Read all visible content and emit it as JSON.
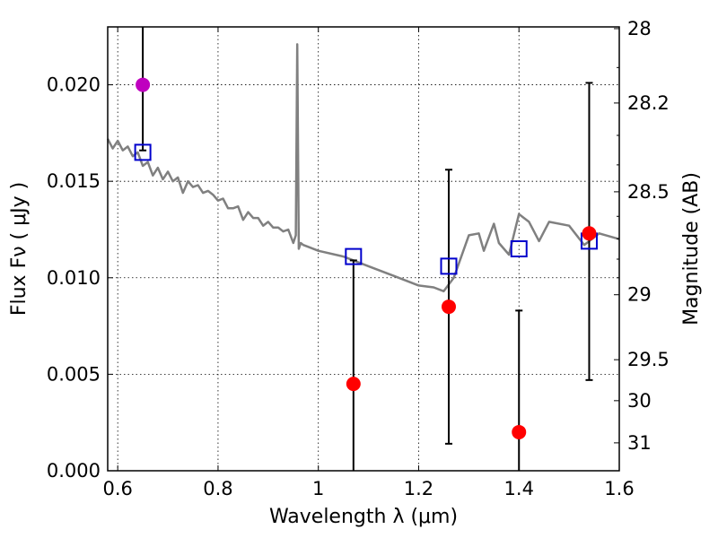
{
  "chart_data": {
    "type": "scatter",
    "xlabel": "Wavelength  λ (μm)",
    "ylabel": "Flux  Fν  ( μJy )",
    "y2label": "Magnitude (AB)",
    "xlim": [
      0.58,
      1.6
    ],
    "ylim": [
      0.0,
      0.023
    ],
    "grid": true,
    "x_ticks": [
      {
        "value": 0.6,
        "label": "0.6"
      },
      {
        "value": 0.8,
        "label": "0.8"
      },
      {
        "value": 1.0,
        "label": "1"
      },
      {
        "value": 1.2,
        "label": "1.2"
      },
      {
        "value": 1.4,
        "label": "1.4"
      },
      {
        "value": 1.6,
        "label": "1.6"
      }
    ],
    "y_ticks": [
      {
        "value": 0.0,
        "label": "0.000"
      },
      {
        "value": 0.005,
        "label": "0.005"
      },
      {
        "value": 0.01,
        "label": "0.010"
      },
      {
        "value": 0.015,
        "label": "0.015"
      },
      {
        "value": 0.02,
        "label": "0.020"
      }
    ],
    "y2_ticks": [
      {
        "magnitude": 28,
        "label": "28"
      },
      {
        "magnitude": 28.2,
        "label": "28.2"
      },
      {
        "magnitude": 28.5,
        "label": "28.5"
      },
      {
        "magnitude": 29,
        "label": "29"
      },
      {
        "magnitude": 29.5,
        "label": "29.5"
      },
      {
        "magnitude": 30,
        "label": "30"
      },
      {
        "magnitude": 31,
        "label": "31"
      }
    ],
    "template_sed": {
      "color": "#808080",
      "x": [
        0.58,
        0.59,
        0.6,
        0.61,
        0.62,
        0.63,
        0.64,
        0.65,
        0.66,
        0.67,
        0.68,
        0.69,
        0.7,
        0.71,
        0.72,
        0.73,
        0.74,
        0.75,
        0.76,
        0.77,
        0.78,
        0.79,
        0.8,
        0.81,
        0.82,
        0.83,
        0.84,
        0.85,
        0.86,
        0.87,
        0.88,
        0.89,
        0.9,
        0.91,
        0.92,
        0.93,
        0.94,
        0.95,
        0.955,
        0.958,
        0.961,
        0.965,
        0.97,
        0.98,
        1.0,
        1.05,
        1.1,
        1.15,
        1.2,
        1.23,
        1.25,
        1.27,
        1.3,
        1.32,
        1.33,
        1.35,
        1.36,
        1.38,
        1.4,
        1.41,
        1.42,
        1.44,
        1.46,
        1.5,
        1.53,
        1.56,
        1.6
      ],
      "y": [
        0.0172,
        0.0167,
        0.0171,
        0.0166,
        0.0168,
        0.0163,
        0.0165,
        0.0158,
        0.016,
        0.0153,
        0.0157,
        0.0151,
        0.0155,
        0.015,
        0.0152,
        0.0144,
        0.015,
        0.0147,
        0.0148,
        0.0144,
        0.0145,
        0.0143,
        0.014,
        0.0141,
        0.0136,
        0.0136,
        0.0137,
        0.013,
        0.0134,
        0.0131,
        0.0131,
        0.0127,
        0.0129,
        0.0126,
        0.0126,
        0.0124,
        0.0125,
        0.0118,
        0.0122,
        0.0221,
        0.0115,
        0.0118,
        0.0117,
        0.0116,
        0.0114,
        0.0111,
        0.0106,
        0.0101,
        0.0096,
        0.0095,
        0.0093,
        0.01,
        0.0122,
        0.0123,
        0.0114,
        0.0128,
        0.0118,
        0.0112,
        0.0133,
        0.0131,
        0.0129,
        0.0119,
        0.0129,
        0.0127,
        0.0117,
        0.0123,
        0.012
      ]
    },
    "model_flux": {
      "marker": "open-square",
      "color": "#0000cc",
      "x": [
        0.65,
        1.07,
        1.26,
        1.4,
        1.54
      ],
      "y": [
        0.0165,
        0.0111,
        0.0106,
        0.0115,
        0.0119
      ]
    },
    "observed_flux": {
      "marker": "filled-circle",
      "color": "#ff0000",
      "x": [
        1.07,
        1.26,
        1.4,
        1.54
      ],
      "y": [
        0.0045,
        0.0085,
        0.002,
        0.0123
      ],
      "err_low": [
        0.0,
        0.0014,
        0.0,
        0.0047
      ],
      "err_high": [
        0.0109,
        0.0156,
        0.0083,
        0.0201
      ]
    },
    "upper_limit": {
      "marker": "filled-circle",
      "color": "#bf00bf",
      "x": [
        0.65
      ],
      "y": [
        0.02
      ],
      "err_low": [
        0.0166
      ],
      "err_high": [
        0.023
      ]
    }
  }
}
